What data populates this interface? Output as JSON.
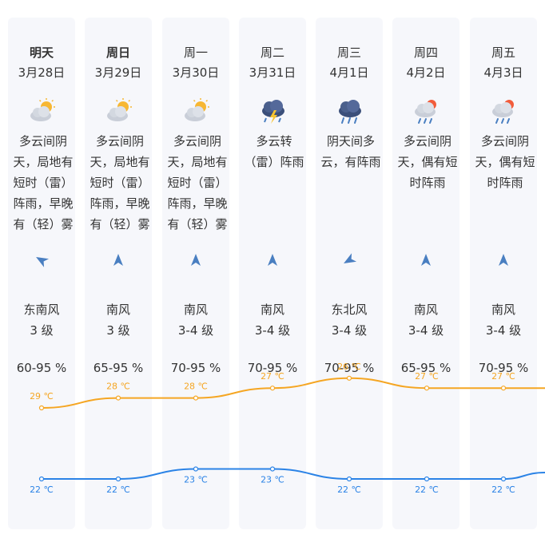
{
  "forecast": {
    "days": [
      {
        "name": "明天",
        "date": "3月28日",
        "weather_icon": "partly-cloudy-sun-icon",
        "weather_desc": "多云间阴天，局地有短时（雷）阵雨，早晚有（轻）雾",
        "wind_dir_icon": "wind-direction-arrow-icon",
        "wind": "东南风",
        "wind_level": "3 级",
        "humidity": "60-95 %",
        "high": "29 ℃",
        "low": "22 ℃"
      },
      {
        "name": "周日",
        "date": "3月29日",
        "weather_icon": "partly-cloudy-sun-icon",
        "weather_desc": "多云间阴天，局地有短时（雷）阵雨，早晚有（轻）雾",
        "wind_dir_icon": "wind-direction-arrow-icon",
        "wind": "南风",
        "wind_level": "3 级",
        "humidity": "65-95 %",
        "high": "28 ℃",
        "low": "22 ℃"
      },
      {
        "name": "周一",
        "date": "3月30日",
        "weather_icon": "partly-cloudy-sun-icon",
        "weather_desc": "多云间阴天，局地有短时（雷）阵雨，早晚有（轻）雾",
        "wind_dir_icon": "wind-direction-arrow-icon",
        "wind": "南风",
        "wind_level": "3-4 级",
        "humidity": "70-95 %",
        "high": "28 ℃",
        "low": "23 ℃"
      },
      {
        "name": "周二",
        "date": "3月31日",
        "weather_icon": "thunderstorm-cloud-icon",
        "weather_desc": "多云转（雷）阵雨",
        "wind_dir_icon": "wind-direction-arrow-icon",
        "wind": "南风",
        "wind_level": "3-4 级",
        "humidity": "70-95 %",
        "high": "27 ℃",
        "low": "23 ℃"
      },
      {
        "name": "周三",
        "date": "4月1日",
        "weather_icon": "rain-cloud-icon",
        "weather_desc": "阴天间多云，有阵雨",
        "wind_dir_icon": "wind-direction-arrow-icon",
        "wind": "东北风",
        "wind_level": "3-4 级",
        "humidity": "70-95 %",
        "high": "26 ℃",
        "low": "22 ℃"
      },
      {
        "name": "周四",
        "date": "4月2日",
        "weather_icon": "sun-shower-cloud-icon",
        "weather_desc": "多云间阴天，偶有短时阵雨",
        "wind_dir_icon": "wind-direction-arrow-icon",
        "wind": "南风",
        "wind_level": "3-4 级",
        "humidity": "65-95 %",
        "high": "27 ℃",
        "low": "22 ℃"
      },
      {
        "name": "周五",
        "date": "4月3日",
        "weather_icon": "sun-shower-cloud-icon",
        "weather_desc": "多云间阴天，偶有短时阵雨",
        "wind_dir_icon": "wind-direction-arrow-icon",
        "wind": "南风",
        "wind_level": "3-4 级",
        "humidity": "70-95 %",
        "high": "27 ℃",
        "low": "22 ℃"
      }
    ]
  },
  "colors": {
    "card_bg": "#f6f7fb",
    "high_line": "#f5a623",
    "low_line": "#2b83e6",
    "text": "#333333",
    "icon_blue": "#4a7fc1"
  },
  "chart_data": {
    "type": "line",
    "categories": [
      "明天",
      "周日",
      "周一",
      "周二",
      "周三",
      "周四",
      "周五"
    ],
    "series": [
      {
        "values": [
          29,
          28,
          28,
          27,
          26,
          27,
          27
        ]
      },
      {
        "values": [
          22,
          22,
          23,
          23,
          22,
          22,
          22
        ]
      }
    ],
    "unit": "℃",
    "grid": false
  }
}
